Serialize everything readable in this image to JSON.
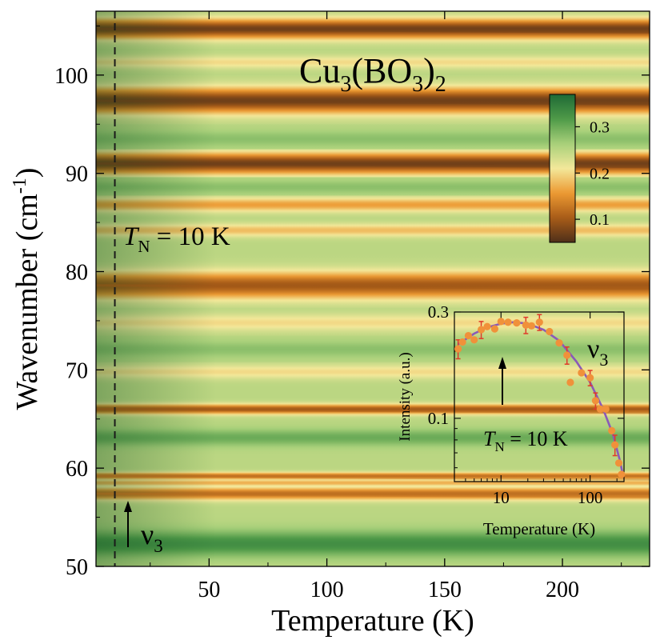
{
  "chart_data": [
    {
      "type": "heatmap",
      "title": "Cu",
      "title_sub1": "3",
      "title_mid": "(BO",
      "title_sub2": "3",
      "title_end": ")",
      "title_sub3": "2",
      "xlabel": "Temperature (K)",
      "ylabel_main": "Wavenumber (cm",
      "ylabel_sup": "-1",
      "ylabel_end": ")",
      "xlim": [
        2,
        237
      ],
      "ylim": [
        50,
        106.5
      ],
      "xticks": [
        50,
        100,
        150,
        200
      ],
      "yticks": [
        50,
        60,
        70,
        80,
        90,
        100
      ],
      "colorbar": {
        "range": [
          0.05,
          0.37
        ],
        "ticks": [
          0.1,
          0.2,
          0.3
        ],
        "colors": [
          "#4e2f19",
          "#a85c18",
          "#ec9932",
          "#f3e89a",
          "#a8d07a",
          "#4f9a48",
          "#1e6a36"
        ]
      },
      "background_level": 0.25,
      "bands": [
        {
          "center": 104.7,
          "width": 0.7,
          "level": 0.07
        },
        {
          "center": 101.3,
          "width": 0.45,
          "level": 0.2
        },
        {
          "center": 97.4,
          "width": 0.9,
          "level": 0.07
        },
        {
          "center": 93.5,
          "width": 0.6,
          "level": 0.28
        },
        {
          "center": 91.0,
          "width": 0.75,
          "level": 0.07
        },
        {
          "center": 88.6,
          "width": 0.5,
          "level": 0.28
        },
        {
          "center": 86.8,
          "width": 0.5,
          "level": 0.16
        },
        {
          "center": 84.2,
          "width": 0.45,
          "level": 0.18
        },
        {
          "center": 78.6,
          "width": 0.95,
          "level": 0.1
        },
        {
          "center": 74.8,
          "width": 0.6,
          "level": 0.2
        },
        {
          "center": 72.1,
          "width": 0.6,
          "level": 0.28
        },
        {
          "center": 69.8,
          "width": 0.5,
          "level": 0.2
        },
        {
          "center": 66.0,
          "width": 0.35,
          "level": 0.1
        },
        {
          "center": 63.1,
          "width": 0.6,
          "level": 0.3
        },
        {
          "center": 59.2,
          "width": 0.25,
          "level": 0.12
        },
        {
          "center": 58.5,
          "width": 0.25,
          "level": 0.17
        },
        {
          "center": 57.4,
          "width": 0.45,
          "level": 0.12
        },
        {
          "center": 52.3,
          "width": 0.9,
          "level": 0.33
        }
      ],
      "marker_line_x": 10,
      "marker_label_italic": "T",
      "marker_label_sub": "N",
      "marker_label_text": " = 10 K",
      "mode_label": "ν",
      "mode_sub": "3"
    },
    {
      "type": "scatter",
      "xlabel": "Temperature (K)",
      "ylabel": "Intensity (a.u.)",
      "xscale": "log",
      "yscale": "log",
      "xlim": [
        3,
        240
      ],
      "ylim": [
        0.052,
        0.3
      ],
      "xticks": [
        10,
        100
      ],
      "xtick_labels": [
        "10",
        "100"
      ],
      "yticks": [
        0.1,
        0.3
      ],
      "ytick_labels": [
        "0.1",
        "0.3"
      ],
      "annotation_italic": "T",
      "annotation_sub": "N",
      "annotation_text": " = 10 K",
      "label": "ν",
      "label_sub": "3",
      "points": [
        {
          "x": 3.3,
          "y": 0.205
        },
        {
          "x": 3.7,
          "y": 0.22
        },
        {
          "x": 4.3,
          "y": 0.235
        },
        {
          "x": 5.0,
          "y": 0.225
        },
        {
          "x": 6.0,
          "y": 0.25
        },
        {
          "x": 7.0,
          "y": 0.258
        },
        {
          "x": 8.5,
          "y": 0.252
        },
        {
          "x": 10,
          "y": 0.272
        },
        {
          "x": 12,
          "y": 0.27
        },
        {
          "x": 15,
          "y": 0.268
        },
        {
          "x": 19,
          "y": 0.262
        },
        {
          "x": 22,
          "y": 0.26
        },
        {
          "x": 27,
          "y": 0.27
        },
        {
          "x": 35,
          "y": 0.245
        },
        {
          "x": 45,
          "y": 0.218
        },
        {
          "x": 55,
          "y": 0.192
        },
        {
          "x": 60,
          "y": 0.145
        },
        {
          "x": 80,
          "y": 0.16
        },
        {
          "x": 100,
          "y": 0.152
        },
        {
          "x": 115,
          "y": 0.12
        },
        {
          "x": 130,
          "y": 0.11
        },
        {
          "x": 150,
          "y": 0.11
        },
        {
          "x": 175,
          "y": 0.088
        },
        {
          "x": 190,
          "y": 0.076
        },
        {
          "x": 210,
          "y": 0.063
        },
        {
          "x": 225,
          "y": 0.056
        }
      ],
      "error_points": [
        {
          "x": 3.3,
          "y": 0.205,
          "err": 0.02
        },
        {
          "x": 6.0,
          "y": 0.25,
          "err": 0.022
        },
        {
          "x": 19,
          "y": 0.262,
          "err": 0.022
        },
        {
          "x": 27,
          "y": 0.27,
          "err": 0.022
        },
        {
          "x": 55,
          "y": 0.192,
          "err": 0.017
        },
        {
          "x": 100,
          "y": 0.152,
          "err": 0.012
        },
        {
          "x": 115,
          "y": 0.12,
          "err": 0.01
        },
        {
          "x": 190,
          "y": 0.076,
          "err": 0.008
        }
      ],
      "fit": [
        {
          "x": 3.3,
          "y": 0.215
        },
        {
          "x": 5,
          "y": 0.24
        },
        {
          "x": 7,
          "y": 0.256
        },
        {
          "x": 10,
          "y": 0.266
        },
        {
          "x": 14,
          "y": 0.27
        },
        {
          "x": 20,
          "y": 0.266
        },
        {
          "x": 30,
          "y": 0.25
        },
        {
          "x": 45,
          "y": 0.223
        },
        {
          "x": 70,
          "y": 0.18
        },
        {
          "x": 100,
          "y": 0.145
        },
        {
          "x": 140,
          "y": 0.11
        },
        {
          "x": 180,
          "y": 0.085
        },
        {
          "x": 215,
          "y": 0.065
        },
        {
          "x": 235,
          "y": 0.055
        }
      ],
      "point_color": "#f0913a",
      "error_color": "#e03a2a",
      "fit_color": "#8a5ab8"
    }
  ]
}
